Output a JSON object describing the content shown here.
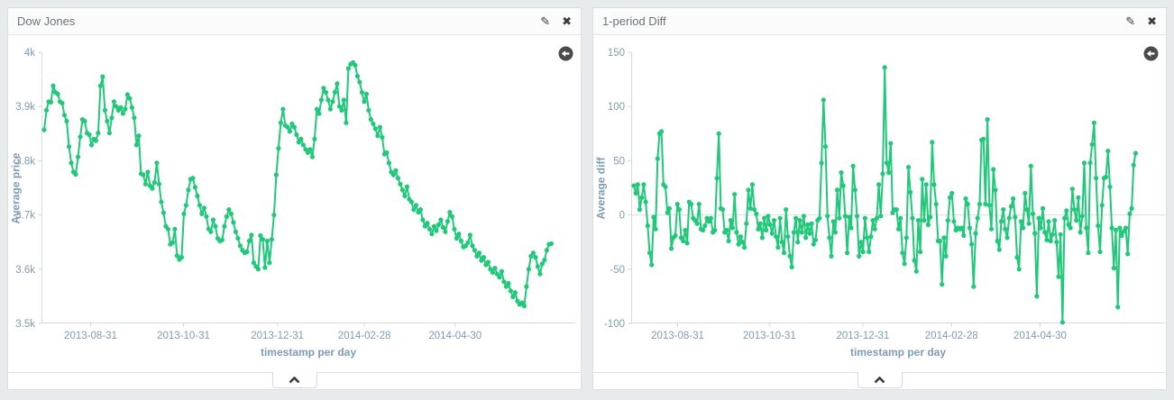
{
  "colors": {
    "series": "#21c87a",
    "axis_line": "#d5d9d9",
    "grid": "#dddddd",
    "axis_text": "#7d9cb4",
    "icon": "#3c3c3c",
    "page_background": "#e8ebeb",
    "panel_background": "#ffffff"
  },
  "icons": {
    "edit_glyph": "✎",
    "close_glyph": "✖"
  },
  "panels": [
    {
      "title": "Dow Jones"
    },
    {
      "title": "1-period Diff"
    }
  ],
  "chart_data": [
    {
      "type": "line",
      "title": "Dow Jones",
      "xlabel": "timestamp per day",
      "ylabel": "Average price",
      "ylim": [
        3.5,
        4.0
      ],
      "grid": false,
      "zero_line": false,
      "legend": "none",
      "marker": "circle",
      "y_ticks": [
        {
          "label": "4k",
          "value": 4.0
        },
        {
          "label": "3.9k",
          "value": 3.9
        },
        {
          "label": "3.8k",
          "value": 3.8
        },
        {
          "label": "3.7k",
          "value": 3.7
        },
        {
          "label": "3.6k",
          "value": 3.6
        },
        {
          "label": "3.5k",
          "value": 3.5
        }
      ],
      "x_ticks": [
        {
          "label": "2013-08-31",
          "pos": 0.092
        },
        {
          "label": "2013-10-31",
          "pos": 0.266
        },
        {
          "label": "2013-12-31",
          "pos": 0.442
        },
        {
          "label": "2014-02-28",
          "pos": 0.605
        },
        {
          "label": "2014-04-30",
          "pos": 0.775
        }
      ],
      "x_span": [
        0.005,
        0.955
      ],
      "x_unit": "day",
      "values": [
        3.857,
        3.893,
        3.909,
        3.908,
        3.938,
        3.926,
        3.923,
        3.909,
        3.906,
        3.884,
        3.873,
        3.826,
        3.796,
        3.779,
        3.775,
        3.807,
        3.844,
        3.876,
        3.873,
        3.851,
        3.848,
        3.829,
        3.84,
        3.837,
        3.851,
        3.938,
        3.955,
        3.893,
        3.873,
        3.851,
        3.879,
        3.909,
        3.9,
        3.893,
        3.898,
        3.887,
        3.895,
        3.922,
        3.915,
        3.898,
        3.879,
        3.829,
        3.846,
        3.776,
        3.774,
        3.757,
        3.779,
        3.754,
        3.749,
        3.76,
        3.796,
        3.757,
        3.724,
        3.704,
        3.679,
        3.674,
        3.646,
        3.649,
        3.674,
        3.625,
        3.618,
        3.622,
        3.702,
        3.718,
        3.746,
        3.766,
        3.768,
        3.751,
        3.735,
        3.718,
        3.702,
        3.713,
        3.697,
        3.674,
        3.669,
        3.691,
        3.679,
        3.657,
        3.652,
        3.654,
        3.679,
        3.697,
        3.71,
        3.702,
        3.686,
        3.669,
        3.657,
        3.643,
        3.635,
        3.63,
        3.632,
        3.652,
        3.663,
        3.612,
        3.605,
        3.6,
        3.662,
        3.655,
        3.603,
        3.652,
        3.612,
        3.655,
        3.7,
        3.774,
        3.823,
        3.87,
        3.895,
        3.865,
        3.862,
        3.854,
        3.868,
        3.862,
        3.848,
        3.834,
        3.84,
        3.829,
        3.821,
        3.815,
        3.821,
        3.807,
        3.84,
        3.895,
        3.887,
        3.912,
        3.934,
        3.926,
        3.912,
        3.895,
        3.909,
        3.926,
        3.942,
        3.9,
        3.893,
        3.912,
        3.87,
        3.97,
        3.978,
        3.981,
        3.976,
        3.956,
        3.945,
        3.926,
        3.909,
        3.923,
        3.893,
        3.876,
        3.868,
        3.859,
        3.846,
        3.862,
        3.843,
        3.812,
        3.815,
        3.796,
        3.779,
        3.774,
        3.782,
        3.768,
        3.757,
        3.746,
        3.735,
        3.752,
        3.729,
        3.724,
        3.71,
        3.718,
        3.705,
        3.71,
        3.691,
        3.679,
        3.685,
        3.674,
        3.665,
        3.679,
        3.671,
        3.682,
        3.691,
        3.677,
        3.669,
        3.688,
        3.705,
        3.697,
        3.674,
        3.657,
        3.665,
        3.652,
        3.641,
        3.643,
        3.649,
        3.663,
        3.643,
        3.635,
        3.624,
        3.63,
        3.616,
        3.622,
        3.608,
        3.613,
        3.6,
        3.594,
        3.602,
        3.591,
        3.585,
        3.596,
        3.577,
        3.568,
        3.574,
        3.56,
        3.549,
        3.557,
        3.541,
        3.535,
        3.538,
        3.532,
        3.568,
        3.6,
        3.624,
        3.63,
        3.622,
        3.605,
        3.591,
        3.61,
        3.617,
        3.635,
        3.646,
        3.647
      ]
    },
    {
      "type": "line",
      "title": "1-period Diff",
      "xlabel": "timestamp per day",
      "ylabel": "Average diff",
      "ylim": [
        -100,
        150
      ],
      "grid": false,
      "zero_line": true,
      "legend": "none",
      "marker": "circle",
      "y_ticks": [
        {
          "label": "150",
          "value": 150
        },
        {
          "label": "100",
          "value": 100
        },
        {
          "label": "50",
          "value": 50
        },
        {
          "label": "0",
          "value": 0
        },
        {
          "label": "-50",
          "value": -50
        },
        {
          "label": "-100",
          "value": -100
        }
      ],
      "x_ticks": [
        {
          "label": "2013-08-31",
          "pos": 0.087
        },
        {
          "label": "2013-10-31",
          "pos": 0.259
        },
        {
          "label": "2013-12-31",
          "pos": 0.434
        },
        {
          "label": "2014-02-28",
          "pos": 0.6
        },
        {
          "label": "2014-04-30",
          "pos": 0.766
        }
      ],
      "x_span": [
        0.005,
        0.945
      ],
      "x_unit": "day",
      "values": [
        27,
        20,
        28,
        5,
        16,
        28,
        12,
        -10,
        -35,
        -46,
        -2,
        -13,
        52,
        75,
        77,
        28,
        26,
        2,
        6,
        -31,
        -21,
        -19,
        10,
        5,
        -21,
        -24,
        -14,
        -26,
        12,
        10,
        -3,
        -5,
        -8,
        10,
        -13,
        -14,
        -10,
        -3,
        -6,
        -3,
        -16,
        -14,
        34,
        75,
        6,
        5,
        -16,
        -14,
        -24,
        -5,
        -12,
        19,
        -16,
        -27,
        -20,
        -25,
        -30,
        -8,
        23,
        6,
        28,
        5,
        1,
        -13,
        -8,
        -21,
        -3,
        -14,
        -1,
        -9,
        -17,
        -5,
        -20,
        -30,
        -3,
        -25,
        -35,
        5,
        -20,
        -38,
        -48,
        -16,
        -3,
        -25,
        -5,
        -16,
        -1,
        -21,
        -9,
        -17,
        -8,
        -27,
        -23,
        -5,
        -3,
        48,
        106,
        63,
        -1,
        -21,
        -38,
        -6,
        -16,
        23,
        -3,
        39,
        27,
        -1,
        -35,
        -2,
        -12,
        45,
        23,
        -1,
        -38,
        -25,
        -34,
        -3,
        -21,
        -34,
        -20,
        -5,
        -13,
        -3,
        28,
        -1,
        38,
        136,
        48,
        39,
        66,
        2,
        5,
        5,
        -13,
        -3,
        -35,
        -45,
        -21,
        44,
        21,
        -3,
        -42,
        -52,
        -5,
        -34,
        33,
        -5,
        28,
        -9,
        -2,
        67,
        28,
        10,
        -24,
        -24,
        -64,
        -21,
        -38,
        -5,
        16,
        20,
        -6,
        -14,
        -12,
        -13,
        -12,
        -19,
        15,
        10,
        -12,
        -27,
        -66,
        -17,
        -3,
        10,
        69,
        70,
        10,
        88,
        9,
        -13,
        42,
        23,
        -24,
        -32,
        -6,
        5,
        -13,
        -21,
        -3,
        8,
        15,
        -2,
        -39,
        -50,
        -6,
        -12,
        20,
        5,
        -8,
        45,
        1,
        -17,
        -75,
        -3,
        -12,
        6,
        -16,
        -23,
        -6,
        -24,
        -18,
        -5,
        -25,
        -57,
        -18,
        -99,
        -3,
        4,
        -9,
        -12,
        24,
        5,
        -5,
        16,
        -16,
        -1,
        48,
        -12,
        -35,
        48,
        65,
        85,
        34,
        -10,
        -34,
        9,
        34,
        35,
        59,
        26,
        -12,
        -49,
        -14,
        -85,
        -12,
        -19,
        -15,
        -12,
        -36,
        1,
        6,
        46,
        57
      ]
    }
  ]
}
